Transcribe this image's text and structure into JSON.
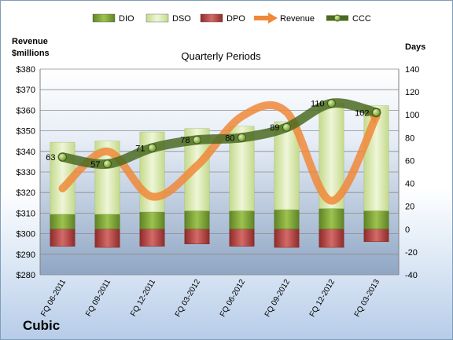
{
  "company": "Cubic",
  "chart_data": {
    "type": "bar",
    "title": "Quarterly Periods",
    "left_axis_label_lines": [
      "Revenue",
      "$millions"
    ],
    "right_axis_label": "Days",
    "categories": [
      "FQ 06-2011",
      "FQ 09-2011",
      "FQ 12-2011",
      "FQ 03-2012",
      "FQ 06-2012",
      "FQ 09-2012",
      "FQ 12-2012",
      "FQ 03-2013"
    ],
    "left_axis": {
      "min": 280,
      "max": 380,
      "step": 10,
      "tick_labels": [
        "$280",
        "$290",
        "$300",
        "$310",
        "$320",
        "$330",
        "$340",
        "$350",
        "$360",
        "$370",
        "$380"
      ]
    },
    "right_axis": {
      "min": -40,
      "max": 140,
      "step": 20,
      "tick_labels": [
        "-40",
        "-20",
        "0",
        "20",
        "40",
        "60",
        "80",
        "100",
        "120",
        "140"
      ]
    },
    "series": [
      {
        "name": "DIO",
        "kind": "bar",
        "axis": "right",
        "color": "#7a9f33",
        "values": [
          13,
          13,
          15,
          16,
          16,
          17,
          18,
          16
        ]
      },
      {
        "name": "DSO",
        "kind": "bar",
        "axis": "right",
        "color": "#d6e6ab",
        "values": [
          63,
          64,
          70,
          72,
          74,
          77,
          92,
          92
        ]
      },
      {
        "name": "DPO",
        "kind": "bar",
        "axis": "right",
        "color": "#b94a48",
        "values": [
          -15,
          -16,
          -15,
          -13,
          -15,
          -16,
          -16,
          -11
        ]
      },
      {
        "name": "Revenue",
        "kind": "line",
        "axis": "left",
        "color": "#f0883a",
        "values": [
          322,
          340,
          318,
          333,
          357,
          359,
          316,
          357
        ]
      },
      {
        "name": "CCC",
        "kind": "line",
        "axis": "right",
        "color": "#5c7e2a",
        "values": [
          63,
          57,
          71,
          78,
          80,
          89,
          110,
          102
        ]
      }
    ],
    "data_labels": [
      "63",
      "57",
      "71",
      "78",
      "80",
      "89",
      "110",
      "102"
    ],
    "legend": {
      "position": "top"
    },
    "grid": true
  }
}
